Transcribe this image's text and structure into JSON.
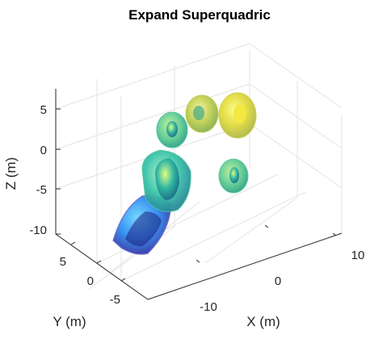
{
  "chart_data": {
    "type": "3d-surface",
    "title": "Expand Superquadric",
    "xlabel": "X (m)",
    "ylabel": "Y (m)",
    "zlabel": "Z (m)",
    "x_ticks": [
      "-10",
      "0",
      "10"
    ],
    "y_ticks": [
      "5",
      "0",
      "-5"
    ],
    "z_ticks": [
      "5",
      "0",
      "-5",
      "-10"
    ],
    "grid": true,
    "colormap": "parula",
    "objects": [
      {
        "name": "superquadric-1",
        "color": "#3a7ff0",
        "shape": "box"
      },
      {
        "name": "superquadric-2",
        "color": "#2fc0b0",
        "shape": "box"
      },
      {
        "name": "superquadric-3",
        "color": "#60cf90",
        "shape": "ellipsoid"
      },
      {
        "name": "superquadric-4",
        "color": "#48c6a6",
        "shape": "ellipsoid"
      },
      {
        "name": "superquadric-5",
        "color": "#c8d24e",
        "shape": "ellipsoid"
      },
      {
        "name": "superquadric-6",
        "color": "#e2dc46",
        "shape": "ellipsoid"
      }
    ]
  }
}
